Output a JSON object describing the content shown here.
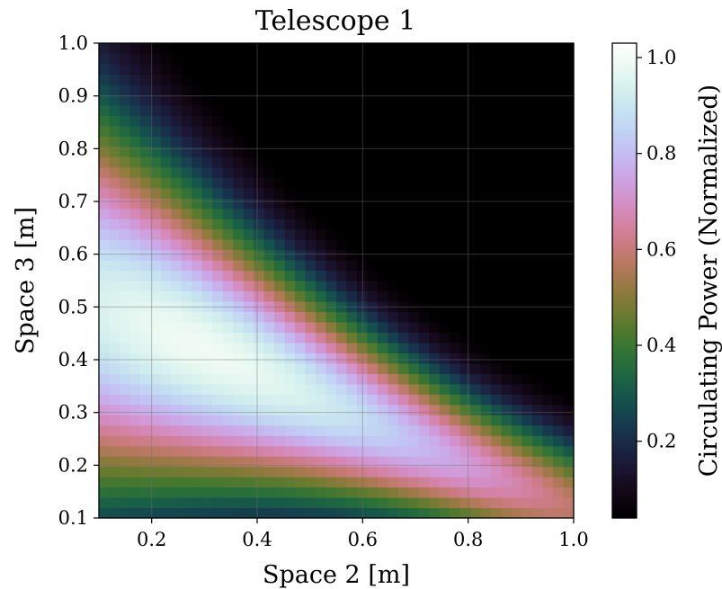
{
  "chart_data": {
    "type": "heatmap",
    "title": "Telescope 1",
    "xlabel": "Space 2 [m]",
    "ylabel": "Space 3 [m]",
    "colorbar_label": "Circulating Power (Normalized)",
    "colormap": "cubehelix",
    "xlim": [
      0.1,
      1.0
    ],
    "ylim": [
      0.1,
      1.0
    ],
    "x_ticks": [
      "0.2",
      "0.4",
      "0.6",
      "0.8",
      "1.0"
    ],
    "y_ticks": [
      "0.1",
      "0.2",
      "0.3",
      "0.4",
      "0.5",
      "0.6",
      "0.7",
      "0.8",
      "0.9",
      "1.0"
    ],
    "colorbar_range": [
      0.04,
      1.03
    ],
    "colorbar_ticks": [
      "0.2",
      "0.4",
      "0.6",
      "0.8",
      "1.0"
    ],
    "grid": true,
    "peak": {
      "x": 0.29,
      "y": 0.41,
      "value": 1.0
    },
    "grid_resolution": [
      46,
      46
    ]
  }
}
